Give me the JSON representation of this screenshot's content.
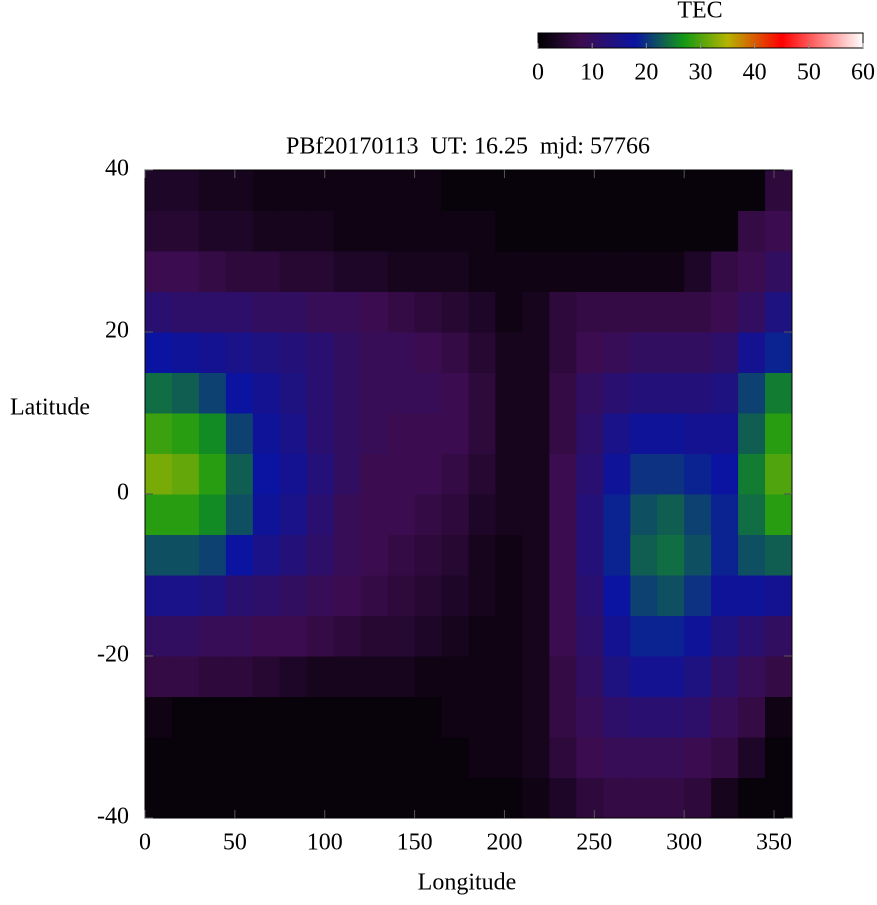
{
  "chart_data": {
    "type": "heatmap",
    "title": "PBf20170113  UT: 16.25  mjd: 57766",
    "x_label": "Longitude",
    "y_label": "Latitude",
    "xlim": [
      0,
      360
    ],
    "xticks": [
      0,
      50,
      100,
      150,
      200,
      250,
      300,
      350
    ],
    "ylim": [
      -40,
      40
    ],
    "yticks": [
      -40,
      -20,
      0,
      20,
      40
    ],
    "x": [
      7.5,
      22.5,
      37.5,
      52.5,
      67.5,
      82.5,
      97.5,
      112.5,
      127.5,
      142.5,
      157.5,
      172.5,
      187.5,
      202.5,
      217.5,
      232.5,
      247.5,
      262.5,
      277.5,
      292.5,
      307.5,
      322.5,
      337.5,
      352.5
    ],
    "y": [
      -37.5,
      -32.5,
      -27.5,
      -22.5,
      -17.5,
      -12.5,
      -7.5,
      -2.5,
      2.5,
      7.5,
      12.5,
      17.5,
      22.5,
      27.5,
      32.5,
      37.5
    ],
    "z": [
      [
        1,
        1,
        1,
        1,
        1,
        1,
        1,
        1,
        1,
        1,
        1,
        1,
        1,
        1,
        2,
        4,
        6,
        7,
        7,
        7,
        6,
        3,
        1,
        1
      ],
      [
        1,
        1,
        1,
        1,
        1,
        1,
        1,
        1,
        1,
        1,
        1,
        1,
        2,
        2,
        3,
        6,
        8,
        9,
        9,
        9,
        8,
        7,
        4,
        1
      ],
      [
        2,
        1,
        1,
        1,
        1,
        1,
        1,
        1,
        1,
        1,
        1,
        2,
        2,
        2,
        3,
        7,
        9,
        11,
        12,
        12,
        11,
        9,
        7,
        2
      ],
      [
        7,
        7,
        6,
        6,
        5,
        4,
        3,
        3,
        3,
        3,
        2,
        2,
        2,
        2,
        3,
        7,
        10,
        14,
        16,
        16,
        14,
        11,
        9,
        7
      ],
      [
        10,
        10,
        9,
        9,
        8,
        8,
        7,
        6,
        5,
        5,
        4,
        3,
        2,
        2,
        3,
        8,
        11,
        16,
        19,
        19,
        17,
        14,
        12,
        10
      ],
      [
        15,
        15,
        14,
        12,
        11,
        10,
        9,
        8,
        7,
        6,
        5,
        4,
        3,
        2,
        3,
        8,
        12,
        18,
        21,
        22,
        20,
        17,
        17,
        16
      ],
      [
        22,
        22,
        21,
        18,
        15,
        13,
        11,
        9,
        8,
        7,
        6,
        5,
        3,
        2,
        3,
        8,
        13,
        19,
        23,
        24,
        22,
        19,
        22,
        23
      ],
      [
        28,
        28,
        26,
        22,
        17,
        15,
        12,
        9,
        8,
        8,
        7,
        6,
        4,
        3,
        3,
        8,
        13,
        19,
        22,
        23,
        21,
        19,
        24,
        28
      ],
      [
        32,
        31,
        28,
        23,
        18,
        16,
        13,
        10,
        8,
        8,
        8,
        7,
        5,
        3,
        3,
        8,
        12,
        17,
        20,
        20,
        19,
        18,
        25,
        30
      ],
      [
        29,
        28,
        26,
        21,
        17,
        15,
        12,
        10,
        9,
        8,
        8,
        8,
        6,
        3,
        3,
        7,
        11,
        15,
        17,
        17,
        16,
        16,
        23,
        28
      ],
      [
        24,
        23,
        21,
        18,
        16,
        14,
        12,
        10,
        9,
        9,
        9,
        8,
        6,
        3,
        3,
        7,
        10,
        12,
        13,
        13,
        13,
        14,
        21,
        25
      ],
      [
        18,
        17,
        16,
        15,
        14,
        13,
        12,
        10,
        9,
        9,
        8,
        7,
        5,
        3,
        3,
        6,
        8,
        9,
        10,
        10,
        10,
        11,
        16,
        19
      ],
      [
        12,
        11,
        11,
        11,
        10,
        10,
        9,
        9,
        8,
        7,
        6,
        5,
        4,
        2,
        3,
        6,
        7,
        7,
        7,
        7,
        7,
        8,
        10,
        14
      ],
      [
        8,
        8,
        7,
        6,
        6,
        5,
        5,
        4,
        4,
        3,
        3,
        3,
        2,
        2,
        2,
        2,
        2,
        2,
        2,
        2,
        4,
        7,
        8,
        10
      ],
      [
        5,
        5,
        4,
        4,
        3,
        3,
        3,
        2,
        2,
        2,
        2,
        2,
        2,
        1,
        1,
        1,
        1,
        1,
        1,
        1,
        1,
        1,
        7,
        8
      ],
      [
        4,
        4,
        3,
        3,
        2,
        2,
        2,
        2,
        2,
        2,
        2,
        1,
        1,
        1,
        1,
        1,
        1,
        1,
        1,
        1,
        1,
        1,
        1,
        6
      ]
    ],
    "colorbar": {
      "label": "TEC",
      "lim": [
        0,
        60
      ],
      "ticks": [
        0,
        10,
        20,
        30,
        40,
        50,
        60
      ]
    },
    "colorscale": [
      [
        0,
        "#000000"
      ],
      [
        8,
        "#3c0c50"
      ],
      [
        18,
        "#0a14a0"
      ],
      [
        27,
        "#149a14"
      ],
      [
        35,
        "#b4b400"
      ],
      [
        45,
        "#ff0000"
      ],
      [
        60,
        "#ffffff"
      ]
    ]
  }
}
